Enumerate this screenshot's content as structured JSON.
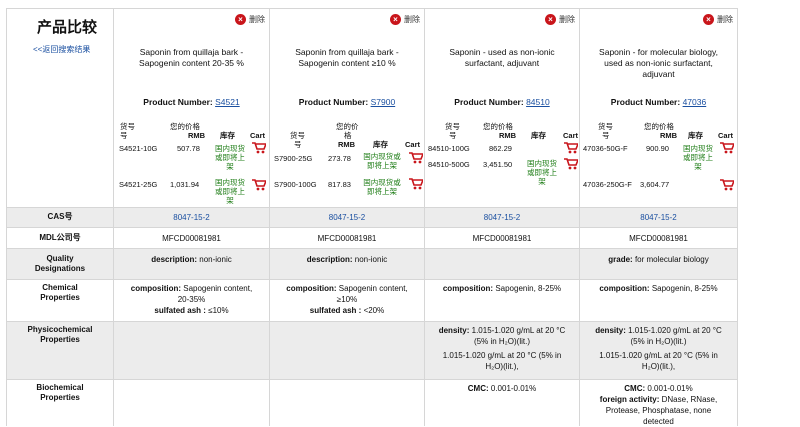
{
  "header": {
    "title": "产品比较",
    "back_link": "<<返回搜索结果"
  },
  "delete_label": "删除",
  "price_headers": {
    "item": "货号",
    "price": "您的价格",
    "rmb": "RMB",
    "stock": "库存",
    "cart": "Cart"
  },
  "row_labels": {
    "cas": "CAS号",
    "mdl": "MDL公司号",
    "quality": [
      "Quality",
      "Designations"
    ],
    "chemical": [
      "Chemical",
      "Properties"
    ],
    "physico": [
      "Physicochemical",
      "Properties"
    ],
    "biochem": [
      "Biochemical",
      "Properties"
    ]
  },
  "products": [
    {
      "name": [
        "Saponin from quillaja bark -",
        "Sapogenin content 20-35 %"
      ],
      "number_label": "Product Number:",
      "number": "S4521",
      "skus": [
        {
          "code": "S4521-10G",
          "price": "507.78",
          "stock": [
            "国内现货",
            "或即将上",
            "架"
          ]
        },
        {
          "code": "S4521-25G",
          "price": "1,031.94",
          "stock": [
            "国内现货",
            "或即将上",
            "架"
          ]
        }
      ],
      "cas": "8047-15-2",
      "mdl": "MFCD00081981",
      "quality": {
        "key": "description:",
        "val": "non-ionic"
      },
      "chemical": {
        "key": "composition:",
        "lines": [
          "Sapogenin content,",
          "20-35%"
        ],
        "extra_key": "sulfated ash :",
        "extra_val": "≤10%"
      }
    },
    {
      "name": [
        "Saponin from quillaja bark -",
        "Sapogenin content ≥10 %"
      ],
      "number_label": "Product Number:",
      "number": "S7900",
      "skus": [
        {
          "code": "S7900-25G",
          "price": "273.78",
          "stock": [
            "国内现货或",
            "即将上架"
          ]
        },
        {
          "code": "S7900-100G",
          "price": "817.83",
          "stock": [
            "国内现货或",
            "即将上架"
          ]
        }
      ],
      "cas": "8047-15-2",
      "mdl": "MFCD00081981",
      "quality": {
        "key": "description:",
        "val": "non-ionic"
      },
      "chemical": {
        "key": "composition:",
        "lines": [
          "Sapogenin content,",
          "≥10%"
        ],
        "extra_key": "sulfated ash :",
        "extra_val": "<20%"
      }
    },
    {
      "name": [
        "Saponin - used as non-ionic",
        "surfactant, adjuvant"
      ],
      "number_label": "Product Number:",
      "number": "84510",
      "skus": [
        {
          "code": "84510-100G",
          "price": "862.29",
          "stock": []
        },
        {
          "code": "84510-500G",
          "price": "3,451.50",
          "stock": [
            "国内现货",
            "或即将上",
            "架"
          ]
        }
      ],
      "cas": "8047-15-2",
      "mdl": "MFCD00081981",
      "quality": {
        "key": "",
        "val": ""
      },
      "chemical": {
        "key": "composition:",
        "lines": [
          "Sapogenin, 8-25%"
        ],
        "extra_key": "",
        "extra_val": ""
      },
      "physico": {
        "key": "density:",
        "first": "1.015-1.020 g/mL at 20 °C",
        "second": "(5% in H₂O)(lit.)",
        "third": "1.015-1.020 g/mL at 20 °C (5% in",
        "fourth": "H₂O)(lit.),"
      },
      "biochem": {
        "key": "CMC:",
        "val": "0.001-0.01%"
      }
    },
    {
      "name": [
        "Saponin - for molecular biology,",
        "used as non-ionic surfactant,",
        "adjuvant"
      ],
      "number_label": "Product Number:",
      "number": "47036",
      "skus": [
        {
          "code": "47036-50G-F",
          "price": "900.90",
          "stock": [
            "国内现货",
            "或即将上",
            "架"
          ]
        },
        {
          "code": "47036-250G-F",
          "price": "3,604.77",
          "stock": []
        }
      ],
      "cas": "8047-15-2",
      "mdl": "MFCD00081981",
      "quality": {
        "key": "grade:",
        "val": "for molecular biology"
      },
      "chemical": {
        "key": "composition:",
        "lines": [
          "Sapogenin, 8-25%"
        ],
        "extra_key": "",
        "extra_val": ""
      },
      "physico": {
        "key": "density:",
        "first": "1.015-1.020 g/mL at 20 °C",
        "second": "(5% in H₂O)(lit.)",
        "third": "1.015-1.020 g/mL at 20 °C (5% in",
        "fourth": "H₂O)(lit.),"
      },
      "biochem": {
        "key": "CMC:",
        "val": "0.001-0.01%",
        "fa_key": "foreign activity:",
        "fa_lines": [
          "DNase, RNase,",
          "Protease, Phosphatase, none",
          "detected"
        ]
      }
    }
  ],
  "colors": {
    "link": "#1a4fa0",
    "stock": "#1e7d16",
    "delete": "#c9151b",
    "cart": "#c9151b",
    "shade": "#ececec"
  }
}
